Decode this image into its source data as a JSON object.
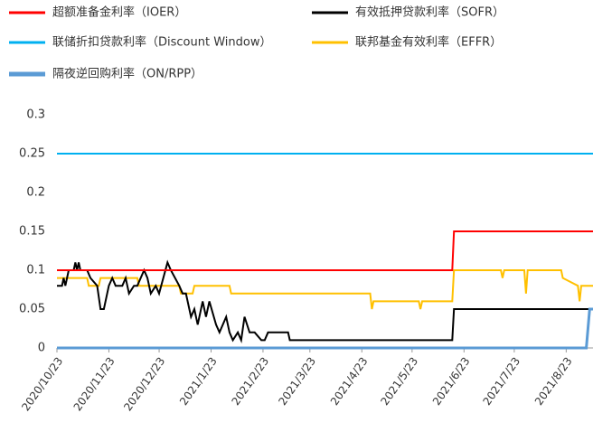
{
  "chart_data": {
    "type": "line",
    "series": [
      {
        "name": "超额准备金利率（IOER）",
        "color": "#ff0000",
        "x": [
          "2020/10/23",
          "2021/6/16",
          "2021/6/17",
          "2021/9/8"
        ],
        "values": [
          0.1,
          0.1,
          0.15,
          0.15
        ]
      },
      {
        "name": "有效抵押贷款利率（SOFR）",
        "color": "#000000",
        "x": [
          "2020/10/23",
          "2020/10/26",
          "2020/10/27",
          "2020/10/28",
          "2020/10/30",
          "2020/11/2",
          "2020/11/3",
          "2020/11/4",
          "2020/11/5",
          "2020/11/6",
          "2020/11/10",
          "2020/11/12",
          "2020/11/16",
          "2020/11/18",
          "2020/11/20",
          "2020/11/23",
          "2020/11/25",
          "2020/11/27",
          "2020/12/1",
          "2020/12/3",
          "2020/12/5",
          "2020/12/8",
          "2020/12/10",
          "2020/12/14",
          "2020/12/16",
          "2020/12/18",
          "2020/12/21",
          "2020/12/23",
          "2020/12/28",
          "2020/12/30",
          "2021/1/4",
          "2021/1/6",
          "2021/1/8",
          "2021/1/11",
          "2021/1/13",
          "2021/1/15",
          "2021/1/18",
          "2021/1/20",
          "2021/1/22",
          "2021/1/26",
          "2021/1/28",
          "2021/2/1",
          "2021/2/3",
          "2021/2/5",
          "2021/2/8",
          "2021/2/10",
          "2021/2/12",
          "2021/2/15",
          "2021/2/18",
          "2021/2/22",
          "2021/2/24",
          "2021/2/26",
          "2021/3/10",
          "2021/3/11",
          "2021/6/16",
          "2021/6/17",
          "2021/9/8"
        ],
        "values": [
          0.08,
          0.08,
          0.09,
          0.08,
          0.1,
          0.1,
          0.11,
          0.1,
          0.11,
          0.1,
          0.1,
          0.09,
          0.08,
          0.05,
          0.05,
          0.08,
          0.09,
          0.08,
          0.08,
          0.09,
          0.07,
          0.08,
          0.08,
          0.1,
          0.09,
          0.07,
          0.08,
          0.07,
          0.11,
          0.1,
          0.08,
          0.07,
          0.07,
          0.04,
          0.05,
          0.03,
          0.06,
          0.04,
          0.06,
          0.03,
          0.02,
          0.04,
          0.02,
          0.01,
          0.02,
          0.01,
          0.04,
          0.02,
          0.02,
          0.01,
          0.01,
          0.02,
          0.02,
          0.01,
          0.01,
          0.05,
          0.05
        ]
      },
      {
        "name": "联储折扣贷款利率（Discount Window）",
        "color": "#00b0f0",
        "x": [
          "2020/10/23",
          "2021/9/8"
        ],
        "values": [
          0.25,
          0.25
        ]
      },
      {
        "name": "联邦基金有效利率（EFFR）",
        "color": "#ffc000",
        "x": [
          "2020/10/23",
          "2020/11/10",
          "2020/11/11",
          "2020/11/17",
          "2020/11/18",
          "2020/12/10",
          "2020/12/11",
          "2021/1/4",
          "2021/1/5",
          "2021/1/12",
          "2021/1/13",
          "2021/2/3",
          "2021/2/4",
          "2021/4/28",
          "2021/4/29",
          "2021/4/30",
          "2021/5/27",
          "2021/5/28",
          "2021/5/29",
          "2021/6/16",
          "2021/6/17",
          "2021/7/15",
          "2021/7/16",
          "2021/7/17",
          "2021/7/29",
          "2021/7/30",
          "2021/7/31",
          "2021/8/20",
          "2021/8/21",
          "2021/8/30",
          "2021/8/31",
          "2021/9/1",
          "2021/9/8"
        ],
        "values": [
          0.09,
          0.09,
          0.08,
          0.08,
          0.09,
          0.09,
          0.08,
          0.08,
          0.07,
          0.07,
          0.08,
          0.08,
          0.07,
          0.07,
          0.05,
          0.06,
          0.06,
          0.05,
          0.06,
          0.06,
          0.1,
          0.1,
          0.09,
          0.1,
          0.1,
          0.07,
          0.1,
          0.1,
          0.09,
          0.08,
          0.06,
          0.08,
          0.08
        ]
      },
      {
        "name": "隔夜逆回购利率（ON/RPP）",
        "color": "#5b9bd5",
        "x": [
          "2020/10/23",
          "2021/9/4",
          "2021/9/6",
          "2021/9/8"
        ],
        "values": [
          0,
          0,
          0.05,
          0.05
        ]
      }
    ],
    "xlim": [
      "2020/10/23",
      "2021/9/8"
    ],
    "xticks": [
      "2020/10/23",
      "2020/11/23",
      "2020/12/23",
      "2021/1/23",
      "2021/2/23",
      "2021/3/23",
      "2021/4/23",
      "2021/5/23",
      "2021/6/23",
      "2021/7/23",
      "2021/8/23"
    ],
    "ylim": [
      0,
      0.3
    ],
    "yticks": [
      0,
      0.05,
      0.1,
      0.15,
      0.2,
      0.25,
      0.3
    ],
    "grid": false
  }
}
